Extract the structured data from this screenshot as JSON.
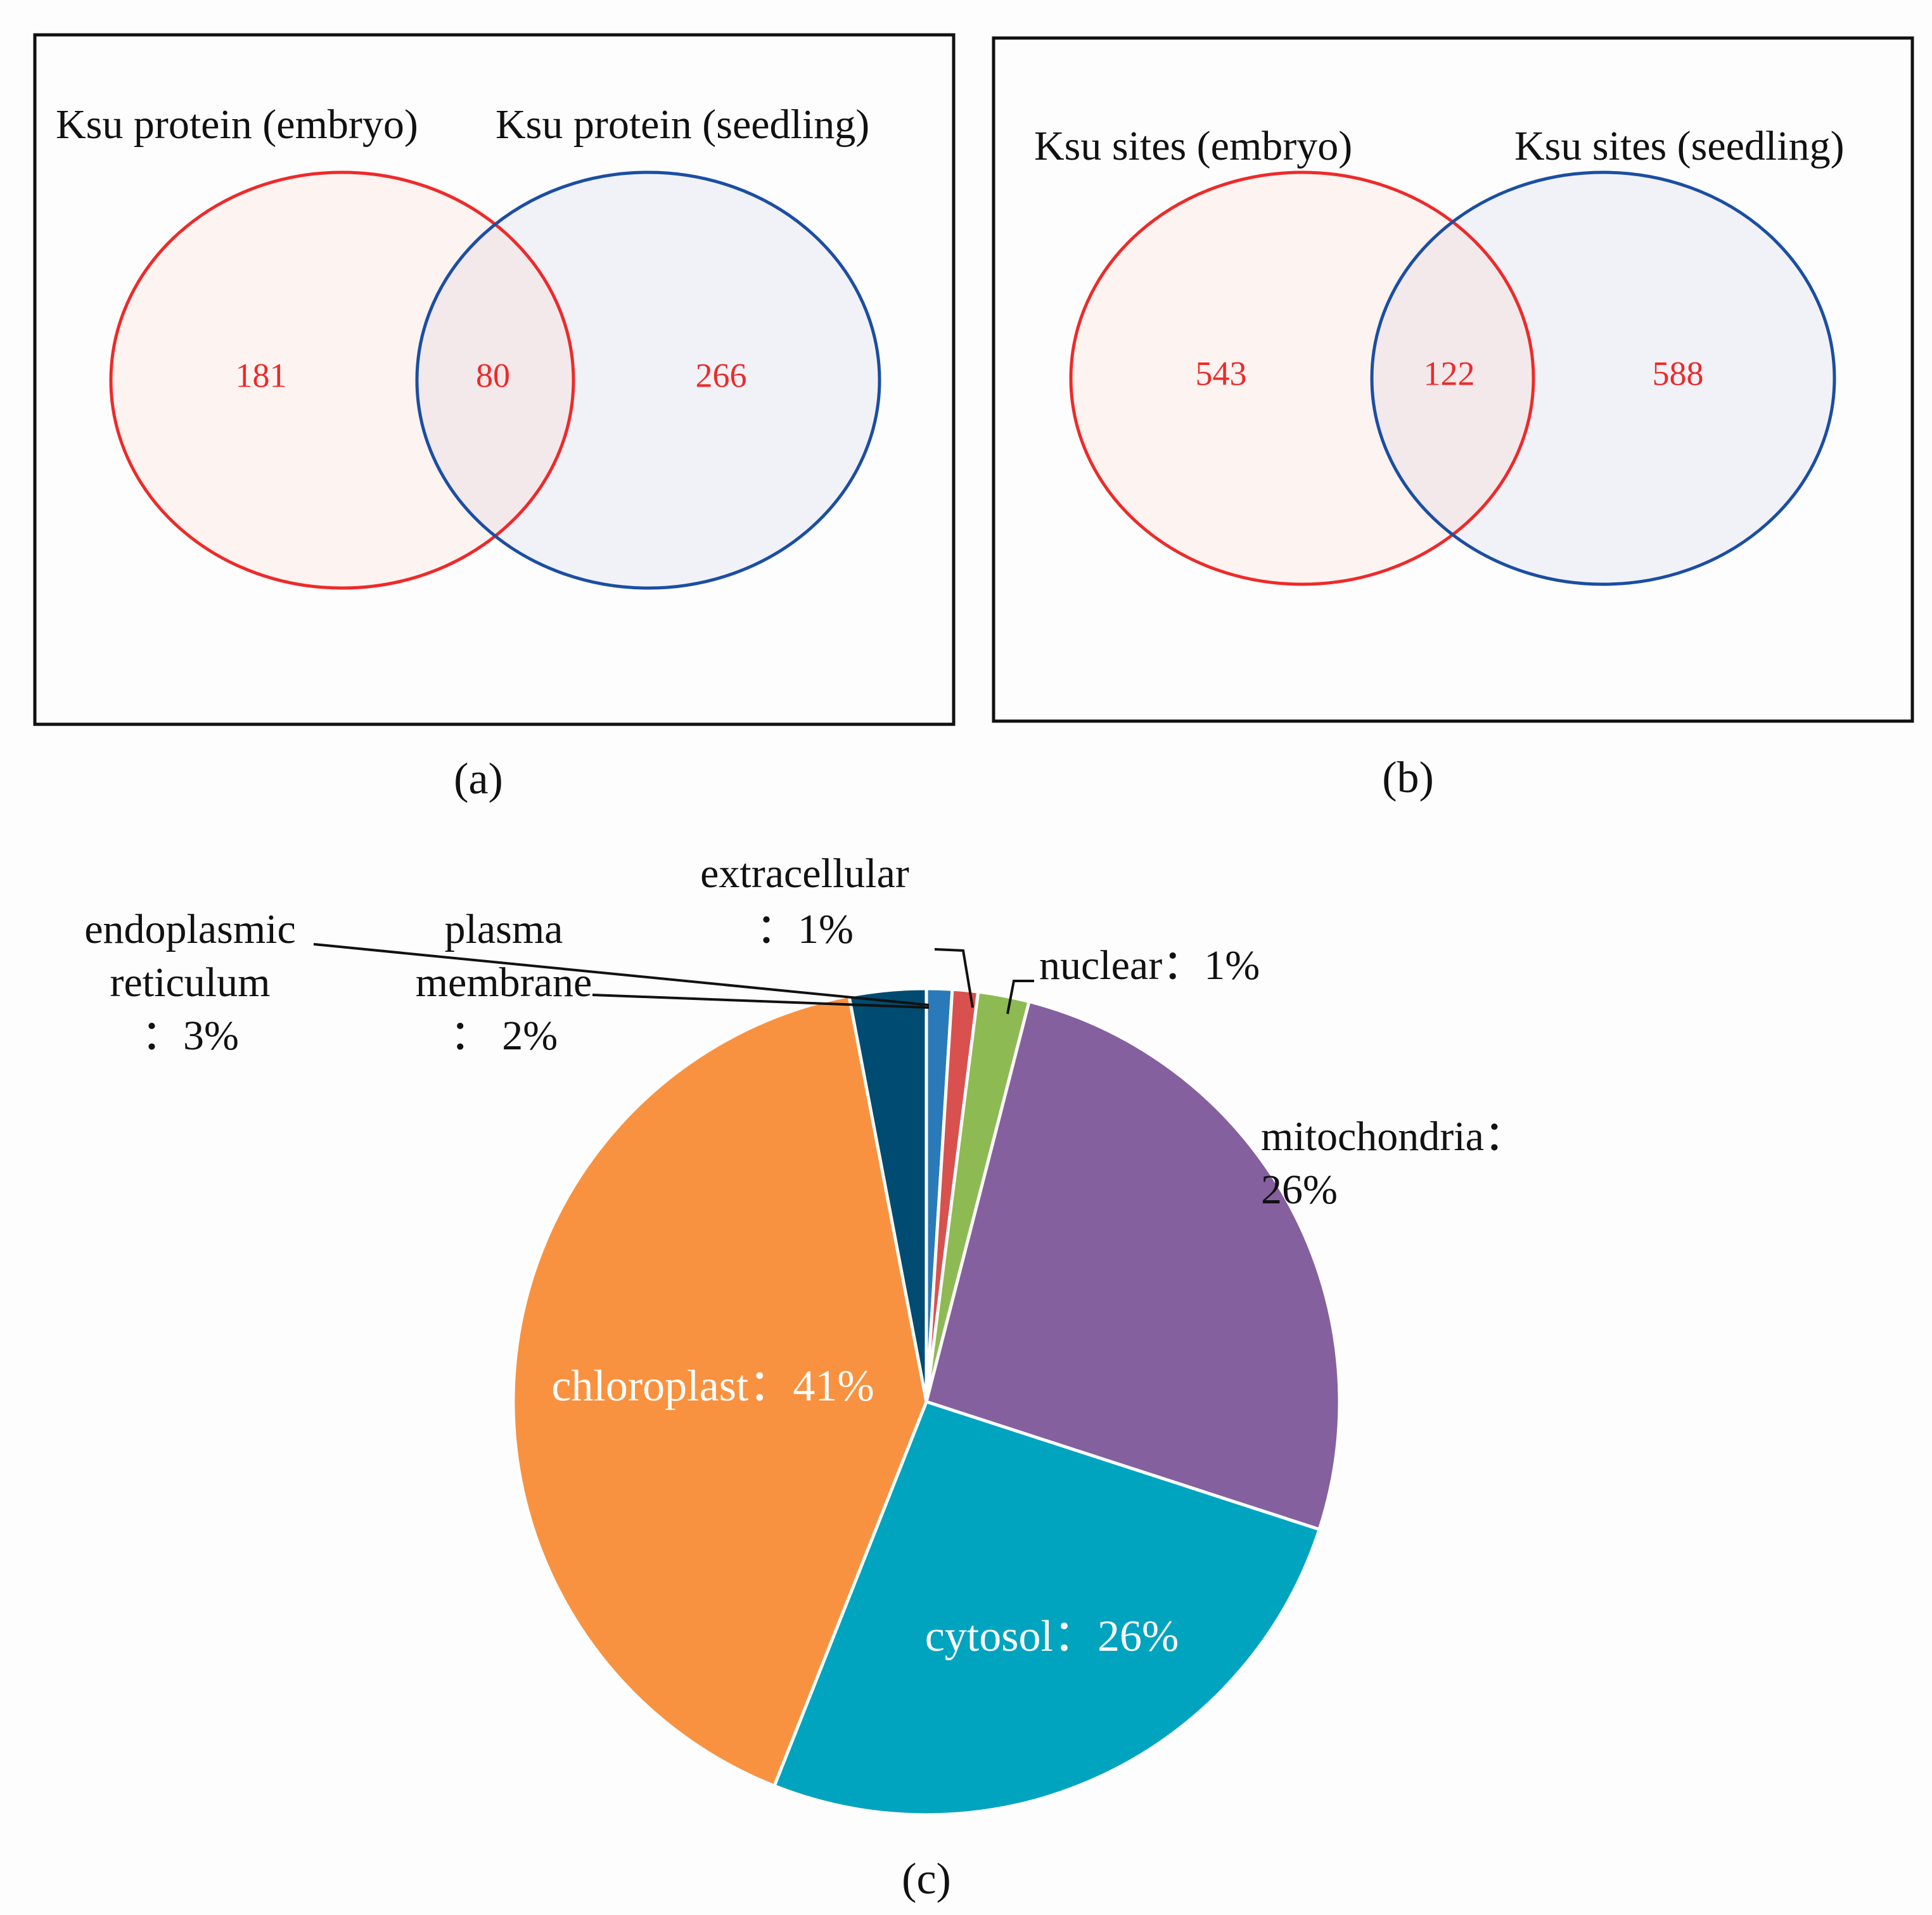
{
  "chart_data": [
    {
      "type": "venn",
      "panel_label": "(a)",
      "sets": [
        {
          "name": "Ksu protein (embryo)",
          "only_count": "181",
          "stroke": "#ee2a2a",
          "fill": "#fdf3f0"
        },
        {
          "name": "Ksu protein (seedling)",
          "only_count": "266",
          "stroke": "#1b4ea3",
          "fill": "#f1f2f8"
        }
      ],
      "intersection": "80",
      "intersection_fill": "#f3e8ea",
      "count_color": "#ee2a2a"
    },
    {
      "type": "venn",
      "panel_label": "(b)",
      "sets": [
        {
          "name": "Ksu sites (embryo)",
          "only_count": "543",
          "stroke": "#ee2a2a",
          "fill": "#fdf3f0"
        },
        {
          "name": "Ksu sites (seedling)",
          "only_count": "588",
          "stroke": "#1b4ea3",
          "fill": "#f1f2f8"
        }
      ],
      "intersection": "122",
      "intersection_fill": "#f3e8ea",
      "count_color": "#ee2a2a"
    },
    {
      "type": "pie",
      "panel_label": "(c)",
      "slices": [
        {
          "name": "extracellular",
          "value": 1,
          "color": "#2a7ab9",
          "label_lines": [
            "extracellular",
            "：1%"
          ]
        },
        {
          "name": "nuclear",
          "value": 1,
          "color": "#d9514e",
          "label_lines": [
            "nuclear：1%"
          ]
        },
        {
          "name": "plasma membrane",
          "value": 2,
          "color": "#8eba54",
          "label_lines": [
            "plasma",
            "membrane",
            "：  2%"
          ]
        },
        {
          "name": "mitochondria",
          "value": 26,
          "color": "#85609e",
          "label_lines": [
            "mitochondria：",
            "26%"
          ]
        },
        {
          "name": "cytosol",
          "value": 26,
          "color": "#00a4bf",
          "label_lines": [
            "cytosol：26%"
          ]
        },
        {
          "name": "chloroplast",
          "value": 41,
          "color": "#f99240",
          "label_lines": [
            "chloroplast：41%"
          ]
        },
        {
          "name": "endoplasmic reticulum",
          "value": 3,
          "color": "#004b71",
          "label_lines": [
            "endoplasmic",
            "reticulum",
            "：3%"
          ]
        }
      ]
    }
  ]
}
